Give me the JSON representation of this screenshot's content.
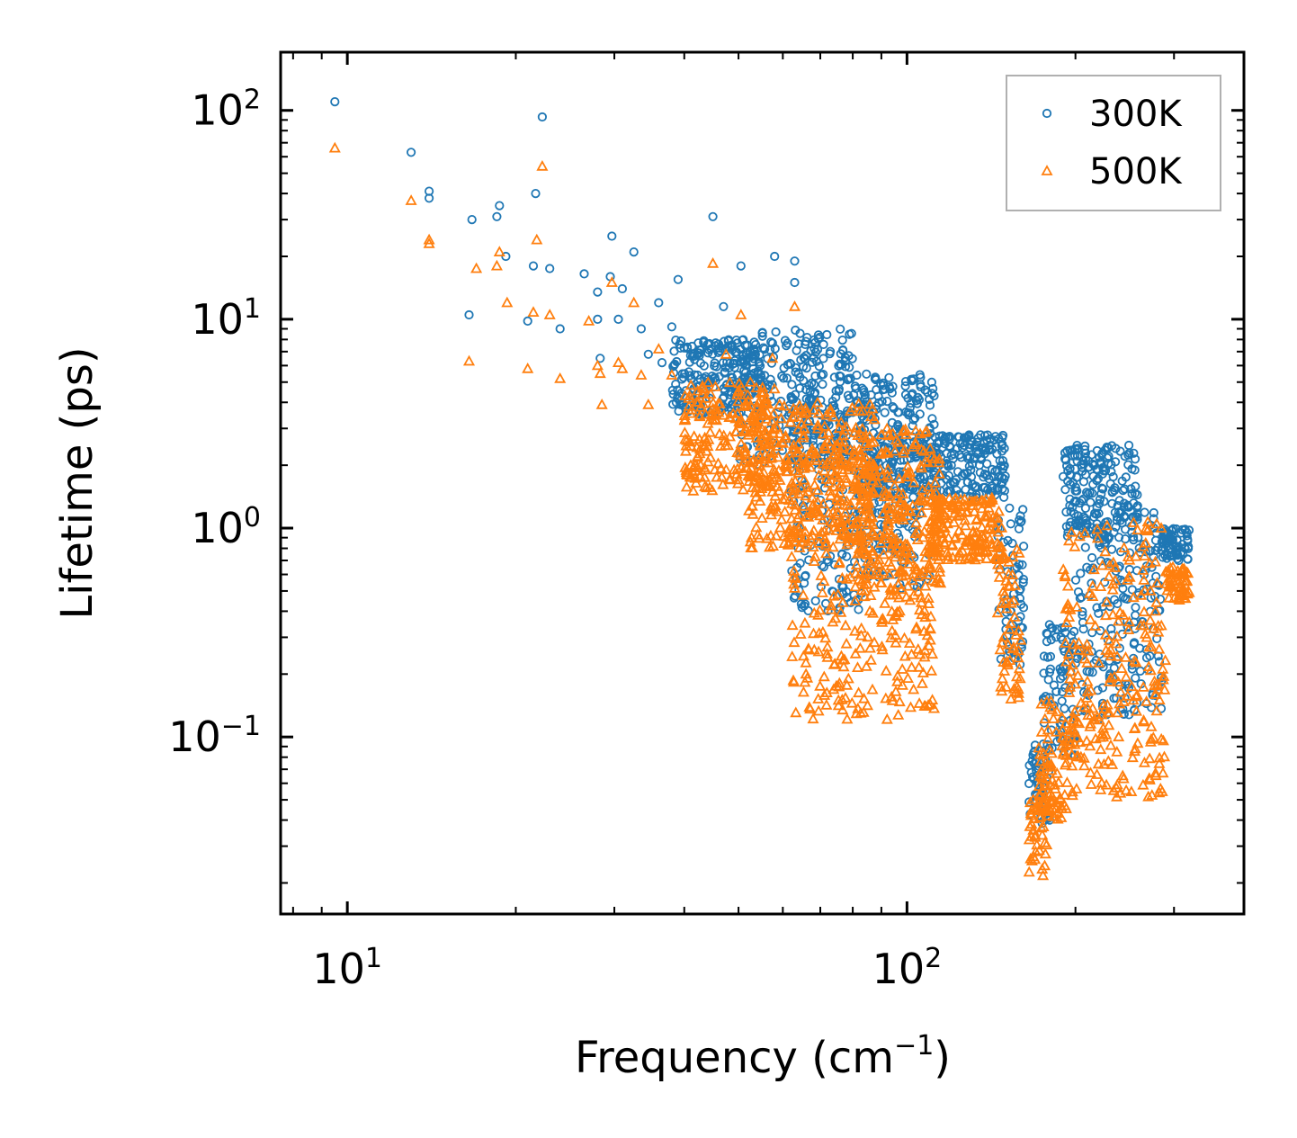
{
  "chart_data": {
    "type": "scatter",
    "xscale": "log",
    "yscale": "log",
    "xlabel": {
      "base": "Frequency (cm",
      "sup": "−1",
      "tail": ")"
    },
    "ylabel": "Lifetime (ps)",
    "xlim": [
      7.6,
      400
    ],
    "ylim": [
      0.0142,
      190
    ],
    "x_ticks": [
      {
        "value": 10,
        "base": "10",
        "exp": "1"
      },
      {
        "value": 100,
        "base": "10",
        "exp": "2"
      }
    ],
    "y_ticks": [
      {
        "value": 0.1,
        "base": "10",
        "exp": "−1"
      },
      {
        "value": 1,
        "base": "10",
        "exp": "0"
      },
      {
        "value": 10,
        "base": "10",
        "exp": "1"
      },
      {
        "value": 100,
        "base": "10",
        "exp": "2"
      }
    ],
    "legend_position": "top-right",
    "grid": false,
    "series": [
      {
        "name": "300K",
        "marker": "circle",
        "color": "#1f77b4",
        "discrete_points": [
          [
            9.5,
            110
          ],
          [
            13,
            63
          ],
          [
            14,
            41
          ],
          [
            14,
            38
          ],
          [
            16.5,
            10.5
          ],
          [
            16.7,
            30
          ],
          [
            18.5,
            31
          ],
          [
            18.7,
            35
          ],
          [
            19.2,
            20
          ],
          [
            21,
            9.8
          ],
          [
            21.5,
            18
          ],
          [
            21.7,
            40
          ],
          [
            22.3,
            93
          ],
          [
            23,
            17.5
          ],
          [
            24,
            9
          ],
          [
            26.5,
            16.5
          ],
          [
            28,
            13.5
          ],
          [
            28,
            10
          ],
          [
            28.3,
            6.5
          ],
          [
            29.5,
            16
          ],
          [
            29.7,
            25
          ],
          [
            30.5,
            10
          ],
          [
            31,
            14
          ],
          [
            32.5,
            21
          ],
          [
            33.5,
            9
          ],
          [
            34.5,
            6.8
          ],
          [
            36,
            12
          ],
          [
            36.5,
            6.2
          ],
          [
            38,
            9.2
          ],
          [
            39,
            15.5
          ],
          [
            45,
            31
          ],
          [
            47,
            11.5
          ],
          [
            50.5,
            18
          ],
          [
            58,
            20
          ],
          [
            63,
            19
          ],
          [
            63,
            15
          ]
        ],
        "bands": [
          {
            "x": [
              38,
              55
            ],
            "y": [
              3.5,
              8
            ]
          },
          {
            "x": [
              50,
              80
            ],
            "y": [
              2.0,
              9
            ]
          },
          {
            "x": [
              62,
              85
            ],
            "y": [
              0.4,
              5
            ]
          },
          {
            "x": [
              80,
              112
            ],
            "y": [
              1.5,
              5.5
            ]
          },
          {
            "x": [
              85,
              110
            ],
            "y": [
              0.5,
              3
            ]
          },
          {
            "x": [
              110,
              150
            ],
            "y": [
              1.4,
              2.8
            ]
          },
          {
            "x": [
              145,
              162
            ],
            "y": [
              0.2,
              1.3
            ]
          },
          {
            "x": [
              165,
              180
            ],
            "y": [
              0.038,
              0.095
            ]
          },
          {
            "x": [
              175,
              200
            ],
            "y": [
              0.08,
              0.35
            ]
          },
          {
            "x": [
              190,
              260
            ],
            "y": [
              0.9,
              2.5
            ]
          },
          {
            "x": [
              200,
              285
            ],
            "y": [
              0.12,
              1.2
            ]
          },
          {
            "x": [
              285,
              320
            ],
            "y": [
              0.7,
              1.0
            ]
          }
        ]
      },
      {
        "name": "500K",
        "marker": "triangle",
        "color": "#ff7f0e",
        "discrete_points": [
          [
            9.5,
            66
          ],
          [
            13,
            37
          ],
          [
            14,
            24
          ],
          [
            14,
            23
          ],
          [
            16.5,
            6.3
          ],
          [
            17,
            17.5
          ],
          [
            18.5,
            18
          ],
          [
            18.7,
            21
          ],
          [
            19.3,
            12
          ],
          [
            21,
            5.8
          ],
          [
            21.5,
            10.8
          ],
          [
            21.8,
            24
          ],
          [
            22.3,
            54
          ],
          [
            23,
            10.5
          ],
          [
            24,
            5.2
          ],
          [
            27,
            9.8
          ],
          [
            28,
            6
          ],
          [
            28.3,
            5.5
          ],
          [
            28.5,
            3.9
          ],
          [
            29.7,
            15
          ],
          [
            30.5,
            6.2
          ],
          [
            31,
            5.8
          ],
          [
            32.5,
            12
          ],
          [
            33.5,
            5.4
          ],
          [
            34.5,
            3.9
          ],
          [
            36,
            7.2
          ],
          [
            38,
            5.4
          ],
          [
            45,
            18.5
          ],
          [
            47.5,
            6.8
          ],
          [
            50.5,
            10.5
          ],
          [
            57.5,
            6.5
          ],
          [
            63,
            11.5
          ]
        ],
        "bands": [
          {
            "x": [
              40,
              58
            ],
            "y": [
              1.5,
              5
            ]
          },
          {
            "x": [
              52,
              88
            ],
            "y": [
              0.8,
              4
            ]
          },
          {
            "x": [
              62,
              88
            ],
            "y": [
              0.12,
              2.5
            ]
          },
          {
            "x": [
              82,
              115
            ],
            "y": [
              0.5,
              3
            ]
          },
          {
            "x": [
              90,
              112
            ],
            "y": [
              0.12,
              1.5
            ]
          },
          {
            "x": [
              110,
              148
            ],
            "y": [
              0.7,
              1.4
            ]
          },
          {
            "x": [
              145,
              160
            ],
            "y": [
              0.15,
              0.8
            ]
          },
          {
            "x": [
              165,
              178
            ],
            "y": [
              0.02,
              0.06
            ]
          },
          {
            "x": [
              172,
              200
            ],
            "y": [
              0.04,
              0.15
            ]
          },
          {
            "x": [
              190,
              290
            ],
            "y": [
              0.05,
              1.1
            ]
          },
          {
            "x": [
              290,
              320
            ],
            "y": [
              0.45,
              0.65
            ]
          }
        ]
      }
    ]
  }
}
